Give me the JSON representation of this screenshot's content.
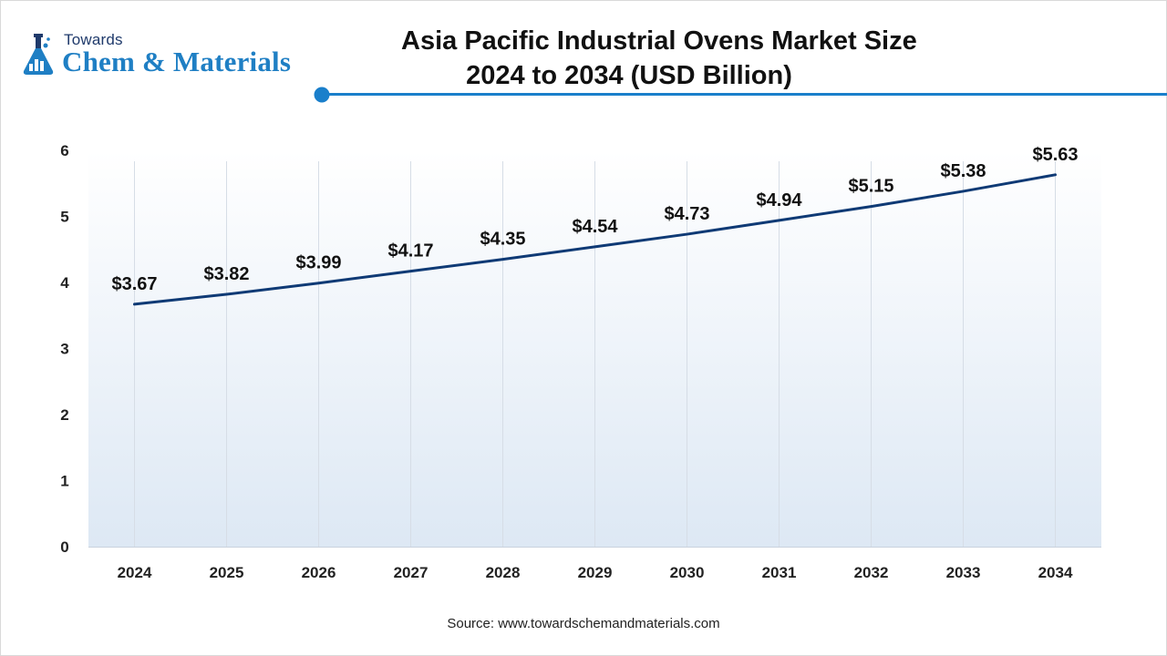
{
  "header": {
    "logo_top": "Towards",
    "logo_main": "Chem & Materials",
    "title_line1": "Asia Pacific Industrial Ovens Market Size",
    "title_line2": "2024 to 2034 (USD Billion)"
  },
  "footer": {
    "source": "Source: www.towardschemandmaterials.com"
  },
  "colors": {
    "line": "#0f3a75",
    "accent": "#1a7fcb",
    "plot_bg_top": "#ffffff",
    "plot_bg_bottom": "#dde8f4"
  },
  "chart_data": {
    "type": "line",
    "title": "Asia Pacific Industrial Ovens Market Size 2024 to 2034 (USD Billion)",
    "categories": [
      "2024",
      "2025",
      "2026",
      "2027",
      "2028",
      "2029",
      "2030",
      "2031",
      "2032",
      "2033",
      "2034"
    ],
    "series": [
      {
        "values": [
          3.67,
          3.82,
          3.99,
          4.17,
          4.35,
          4.54,
          4.73,
          4.94,
          5.15,
          5.38,
          5.63
        ],
        "data_labels": [
          "$3.67",
          "$3.82",
          "$3.99",
          "$4.17",
          "$4.35",
          "$4.54",
          "$4.73",
          "$4.94",
          "$5.15",
          "$5.38",
          "$5.63"
        ]
      }
    ],
    "y_ticks": [
      "0",
      "1",
      "2",
      "3",
      "4",
      "5",
      "6"
    ],
    "ylim": [
      0,
      6
    ],
    "xlabel": "",
    "ylabel": "",
    "grid": "vertical lines at categories",
    "legend": "none"
  }
}
